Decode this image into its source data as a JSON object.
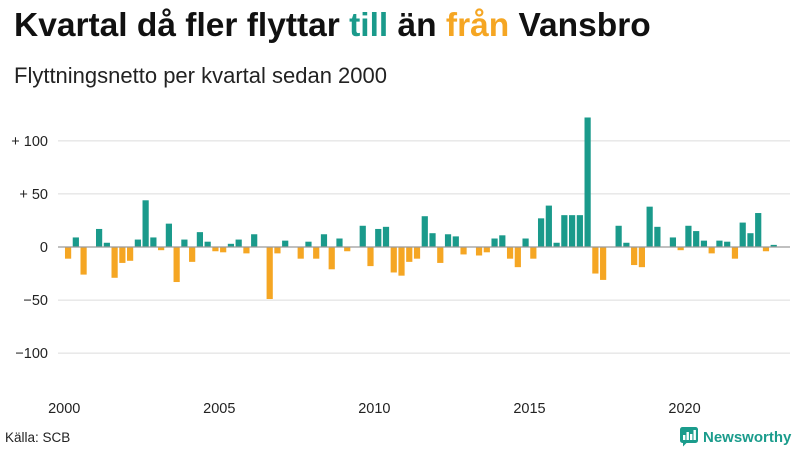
{
  "chart_data": {
    "type": "bar",
    "title": {
      "parts": [
        {
          "text": "Kvartal då fler flyttar ",
          "color": "#111111"
        },
        {
          "text": "till",
          "color": "#1a9a8b"
        },
        {
          "text": " än ",
          "color": "#111111"
        },
        {
          "text": "från",
          "color": "#f5a623"
        },
        {
          "text": " Vansbro",
          "color": "#111111"
        }
      ]
    },
    "subtitle": "Flyttningsnetto per kvartal sedan 2000",
    "x": [
      2000,
      2000.25,
      2000.5,
      2000.75,
      2001,
      2001.25,
      2001.5,
      2001.75,
      2002,
      2002.25,
      2002.5,
      2002.75,
      2003,
      2003.25,
      2003.5,
      2003.75,
      2004,
      2004.25,
      2004.5,
      2004.75,
      2005,
      2005.25,
      2005.5,
      2005.75,
      2006,
      2006.25,
      2006.5,
      2006.75,
      2007,
      2007.25,
      2007.5,
      2007.75,
      2008,
      2008.25,
      2008.5,
      2008.75,
      2009,
      2009.25,
      2009.5,
      2009.75,
      2010,
      2010.25,
      2010.5,
      2010.75,
      2011,
      2011.25,
      2011.5,
      2011.75,
      2012,
      2012.25,
      2012.5,
      2012.75,
      2013,
      2013.25,
      2013.5,
      2013.75,
      2014,
      2014.25,
      2014.5,
      2014.75,
      2015,
      2015.25,
      2015.5,
      2015.75,
      2016,
      2016.25,
      2016.5,
      2016.75,
      2017,
      2017.25,
      2017.5,
      2017.75,
      2018,
      2018.25,
      2018.5,
      2018.75,
      2019,
      2019.25,
      2019.5,
      2019.75,
      2020,
      2020.25,
      2020.5,
      2020.75,
      2021,
      2021.25,
      2021.5,
      2021.75,
      2022,
      2022.25,
      2022.5,
      2022.75
    ],
    "values": [
      -11,
      9,
      -26,
      0,
      17,
      4,
      -29,
      -15,
      -13,
      7,
      44,
      9,
      -3,
      22,
      -33,
      7,
      -14,
      14,
      5,
      -4,
      -5,
      3,
      7,
      -6,
      12,
      0,
      -49,
      -6,
      6,
      0,
      -11,
      5,
      -11,
      12,
      -21,
      8,
      -4,
      0,
      20,
      -18,
      17,
      19,
      -24,
      -27,
      -14,
      -11,
      29,
      13,
      -15,
      12,
      10,
      -7,
      0,
      -8,
      -5,
      8,
      11,
      -11,
      -19,
      8,
      -11,
      27,
      39,
      4,
      30,
      30,
      30,
      122,
      -25,
      -31,
      0,
      20,
      4,
      -17,
      -19,
      38,
      19,
      0,
      9,
      -3,
      20,
      15,
      6,
      -6,
      6,
      5,
      -11,
      23,
      13,
      32,
      -4,
      2
    ],
    "xlim": [
      1999.8,
      2023.4
    ],
    "ylim": [
      -130,
      130
    ],
    "xticks": [
      {
        "value": 2000,
        "label": "2000"
      },
      {
        "value": 2005,
        "label": "2005"
      },
      {
        "value": 2010,
        "label": "2010"
      },
      {
        "value": 2015,
        "label": "2015"
      },
      {
        "value": 2020,
        "label": "2020"
      }
    ],
    "yticks": [
      {
        "value": 100,
        "label": "+ 100"
      },
      {
        "value": 50,
        "label": "+ 50"
      },
      {
        "value": 0,
        "label": "0"
      },
      {
        "value": -50,
        "label": "−50"
      },
      {
        "value": -100,
        "label": "−100"
      }
    ],
    "grid": true,
    "colors": {
      "positive": "#1a9a8b",
      "negative": "#f5a623",
      "grid": "#dcdcdc",
      "zero_line": "#9a9a9a"
    }
  },
  "footer": {
    "source": "Källa: SCB",
    "brand": "Newsworthy",
    "brand_color": "#1b9c8c",
    "brand_icon": "newsworthy-logo-icon"
  }
}
